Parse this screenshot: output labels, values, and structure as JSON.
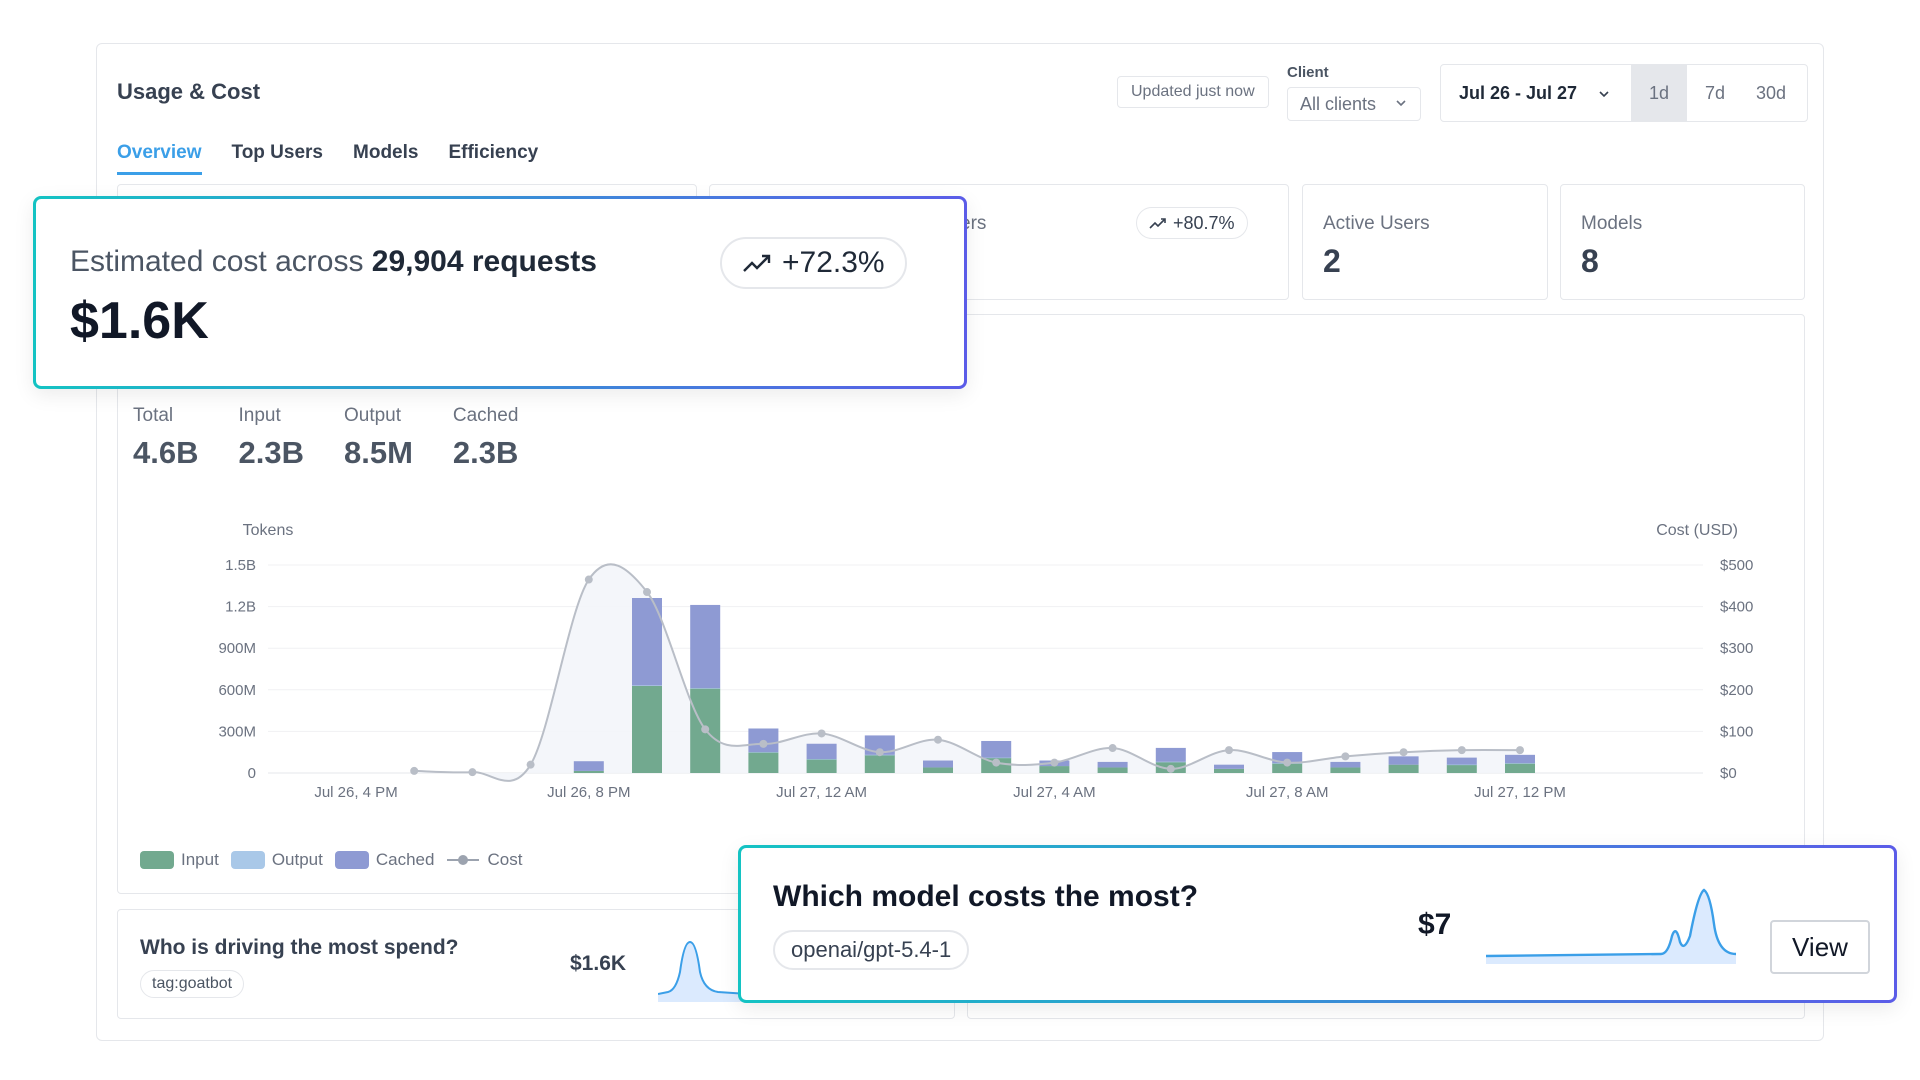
{
  "header": {
    "title": "Usage & Cost",
    "updated": "Updated just now",
    "client_label": "Client",
    "client_value": "All clients",
    "date_range": "Jul 26 - Jul 27",
    "range_buttons": [
      "1d",
      "7d",
      "30d"
    ],
    "active_range": "1d"
  },
  "tabs": [
    {
      "label": "Overview",
      "active": true
    },
    {
      "label": "Top Users",
      "active": false
    },
    {
      "label": "Models",
      "active": false
    },
    {
      "label": "Efficiency",
      "active": false
    }
  ],
  "stats": {
    "users_partial_label": "ers",
    "users_change": "+80.7%",
    "active_users_label": "Active Users",
    "active_users_value": "2",
    "models_label": "Models",
    "models_value": "8"
  },
  "tokens": [
    {
      "label": "Total",
      "value": "4.6B"
    },
    {
      "label": "Input",
      "value": "2.3B"
    },
    {
      "label": "Output",
      "value": "8.5M"
    },
    {
      "label": "Cached",
      "value": "2.3B"
    }
  ],
  "chart_data": {
    "type": "bar",
    "ylabel_left": "Tokens",
    "ylabel_right": "Cost (USD)",
    "y_left_ticks": [
      "0",
      "300M",
      "600M",
      "900M",
      "1.2B",
      "1.5B"
    ],
    "y_right_ticks": [
      "$0",
      "$100",
      "$200",
      "$300",
      "$400",
      "$500"
    ],
    "x_tick_labels": [
      "Jul 26, 4 PM",
      "Jul 26, 8 PM",
      "Jul 27, 12 AM",
      "Jul 27, 4 AM",
      "Jul 27, 8 AM",
      "Jul 27, 12 PM"
    ],
    "ylim_left": [
      0,
      1500
    ],
    "ylim_right": [
      0,
      500
    ],
    "units_left": "M tokens",
    "x_hours": [
      7,
      8,
      9,
      10,
      11,
      12,
      13,
      14,
      15,
      16,
      17,
      18,
      19,
      20,
      21,
      22,
      23
    ],
    "series": [
      {
        "name": "Input",
        "color": "#72a98f",
        "values": [
          15,
          630,
          610,
          150,
          100,
          130,
          40,
          110,
          50,
          40,
          80,
          30,
          70,
          40,
          60,
          60,
          70
        ]
      },
      {
        "name": "Output",
        "color": "#a9c8e8",
        "values": [
          0,
          2,
          2,
          1,
          1,
          1,
          0,
          1,
          0,
          0,
          1,
          0,
          1,
          0,
          0,
          1,
          1
        ]
      },
      {
        "name": "Cached",
        "color": "#8e9ad3",
        "values": [
          70,
          630,
          600,
          170,
          110,
          140,
          50,
          120,
          40,
          40,
          100,
          30,
          80,
          40,
          60,
          50,
          60
        ]
      }
    ],
    "cost": {
      "name": "Cost",
      "x_hours": [
        4,
        5,
        6,
        7,
        8,
        9,
        10,
        11,
        12,
        13,
        14,
        15,
        16,
        17,
        18,
        19,
        20,
        21,
        22,
        23
      ],
      "values": [
        5,
        2,
        20,
        465,
        435,
        105,
        70,
        95,
        50,
        80,
        25,
        25,
        60,
        10,
        55,
        25,
        40,
        50,
        55,
        55
      ]
    },
    "legend": [
      "Input",
      "Output",
      "Cached",
      "Cost"
    ],
    "legend_position": "bottom-left"
  },
  "cost_overlay": {
    "prefix": "Estimated cost across ",
    "requests": "29,904 requests",
    "value": "$1.6K",
    "change": "+72.3%"
  },
  "spend_card": {
    "question": "Who is driving the most spend?",
    "tag": "tag:goatbot",
    "value": "$1.6K"
  },
  "model_overlay": {
    "question": "Which model costs the most?",
    "model": "openai/gpt-5.4-1",
    "value": "$7",
    "button": "View"
  }
}
